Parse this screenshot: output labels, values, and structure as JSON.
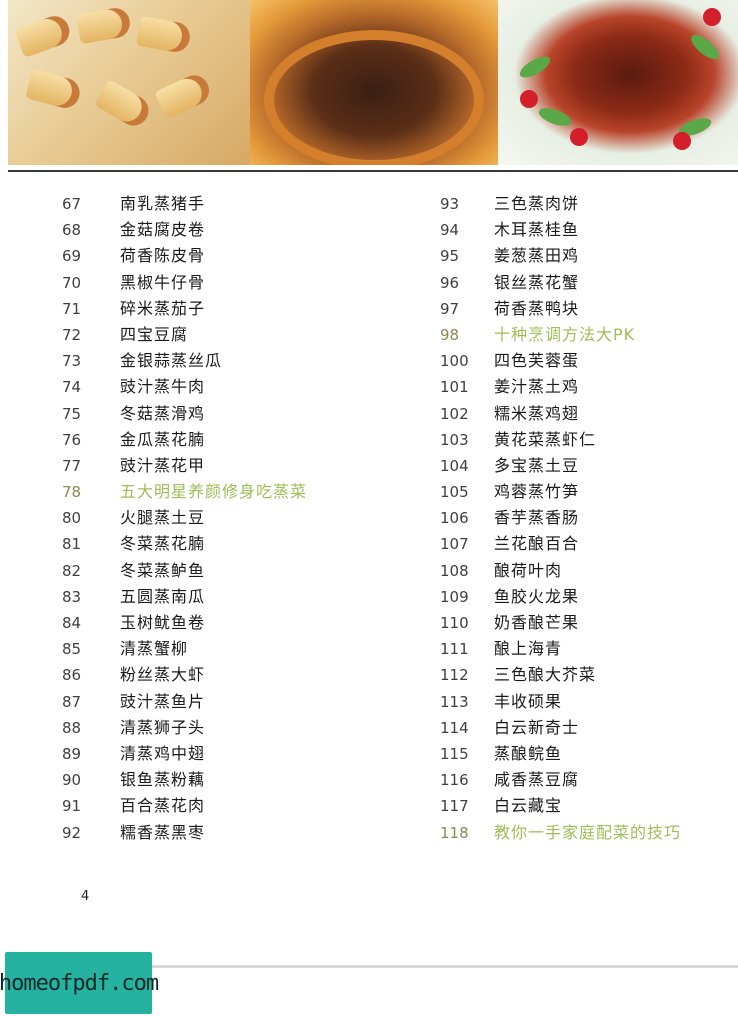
{
  "left_column": [
    {
      "num": "67",
      "title": "南乳蒸猪手",
      "highlight": false
    },
    {
      "num": "68",
      "title": "金菇腐皮卷",
      "highlight": false
    },
    {
      "num": "69",
      "title": "荷香陈皮骨",
      "highlight": false
    },
    {
      "num": "70",
      "title": "黑椒牛仔骨",
      "highlight": false
    },
    {
      "num": "71",
      "title": "碎米蒸茄子",
      "highlight": false
    },
    {
      "num": "72",
      "title": "四宝豆腐",
      "highlight": false
    },
    {
      "num": "73",
      "title": "金银蒜蒸丝瓜",
      "highlight": false
    },
    {
      "num": "74",
      "title": "豉汁蒸牛肉",
      "highlight": false
    },
    {
      "num": "75",
      "title": "冬菇蒸滑鸡",
      "highlight": false
    },
    {
      "num": "76",
      "title": "金瓜蒸花腩",
      "highlight": false
    },
    {
      "num": "77",
      "title": "豉汁蒸花甲",
      "highlight": false
    },
    {
      "num": "78",
      "title": "五大明星养颜修身吃蒸菜",
      "highlight": true
    },
    {
      "num": "80",
      "title": "火腿蒸土豆",
      "highlight": false
    },
    {
      "num": "81",
      "title": "冬菜蒸花腩",
      "highlight": false
    },
    {
      "num": "82",
      "title": "冬菜蒸鲈鱼",
      "highlight": false
    },
    {
      "num": "83",
      "title": "五圆蒸南瓜",
      "highlight": false
    },
    {
      "num": "84",
      "title": "玉树鱿鱼卷",
      "highlight": false
    },
    {
      "num": "85",
      "title": "清蒸蟹柳",
      "highlight": false
    },
    {
      "num": "86",
      "title": "粉丝蒸大虾",
      "highlight": false
    },
    {
      "num": "87",
      "title": "豉汁蒸鱼片",
      "highlight": false
    },
    {
      "num": "88",
      "title": "清蒸狮子头",
      "highlight": false
    },
    {
      "num": "89",
      "title": "清蒸鸡中翅",
      "highlight": false
    },
    {
      "num": "90",
      "title": "银鱼蒸粉藕",
      "highlight": false
    },
    {
      "num": "91",
      "title": "百合蒸花肉",
      "highlight": false
    },
    {
      "num": "92",
      "title": "糯香蒸黑枣",
      "highlight": false
    }
  ],
  "right_column": [
    {
      "num": "93",
      "title": "三色蒸肉饼",
      "highlight": false
    },
    {
      "num": "94",
      "title": "木耳蒸桂鱼",
      "highlight": false
    },
    {
      "num": "95",
      "title": "姜葱蒸田鸡",
      "highlight": false
    },
    {
      "num": "96",
      "title": "银丝蒸花蟹",
      "highlight": false
    },
    {
      "num": "97",
      "title": "荷香蒸鸭块",
      "highlight": false
    },
    {
      "num": "98",
      "title": "十种烹调方法大PK",
      "highlight": true
    },
    {
      "num": "100",
      "title": "四色芙蓉蛋",
      "highlight": false
    },
    {
      "num": "101",
      "title": "姜汁蒸土鸡",
      "highlight": false
    },
    {
      "num": "102",
      "title": "糯米蒸鸡翅",
      "highlight": false
    },
    {
      "num": "103",
      "title": "黄花菜蒸虾仁",
      "highlight": false
    },
    {
      "num": "104",
      "title": "多宝蒸土豆",
      "highlight": false
    },
    {
      "num": "105",
      "title": "鸡蓉蒸竹笋",
      "highlight": false
    },
    {
      "num": "106",
      "title": "香芋蒸香肠",
      "highlight": false
    },
    {
      "num": "107",
      "title": "兰花酿百合",
      "highlight": false
    },
    {
      "num": "108",
      "title": "酿荷叶肉",
      "highlight": false
    },
    {
      "num": "109",
      "title": "鱼胶火龙果",
      "highlight": false
    },
    {
      "num": "110",
      "title": "奶香酿芒果",
      "highlight": false
    },
    {
      "num": "111",
      "title": "酿上海青",
      "highlight": false
    },
    {
      "num": "112",
      "title": "三色酿大芥菜",
      "highlight": false
    },
    {
      "num": "113",
      "title": "丰收硕果",
      "highlight": false
    },
    {
      "num": "114",
      "title": "白云新奇士",
      "highlight": false
    },
    {
      "num": "115",
      "title": "蒸酿鲩鱼",
      "highlight": false
    },
    {
      "num": "116",
      "title": "咸香蒸豆腐",
      "highlight": false
    },
    {
      "num": "117",
      "title": "白云藏宝",
      "highlight": false
    },
    {
      "num": "118",
      "title": "教你一手家庭配菜的技巧",
      "highlight": true
    }
  ],
  "page_number": "4",
  "watermark": "homeofpdf.com",
  "colors": {
    "highlight_text": "#9fbd55",
    "body_text": "#1a1a1a",
    "watermark_bg": "#25b2a0"
  }
}
